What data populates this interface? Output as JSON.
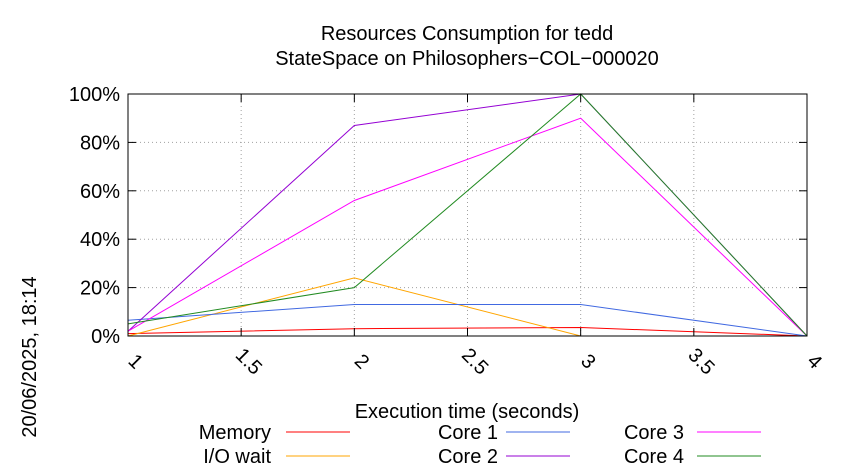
{
  "chart_data": {
    "type": "line",
    "title": "Resources Consumption for tedd",
    "subtitle": "StateSpace on Philosophers−COL−000020",
    "xlabel": "Execution time (seconds)",
    "ylabel": "",
    "side_label": "20/06/2025, 18:14",
    "xlim": [
      1,
      4
    ],
    "ylim": [
      0,
      100
    ],
    "x_ticks": [
      1,
      1.5,
      2,
      2.5,
      3,
      3.5,
      4
    ],
    "x_tick_labels": [
      "1",
      "1.5",
      "2",
      "2.5",
      "3",
      "3.5",
      "4"
    ],
    "y_ticks": [
      0,
      20,
      40,
      60,
      80,
      100
    ],
    "y_tick_labels": [
      "0%",
      "20%",
      "40%",
      "60%",
      "80%",
      "100%"
    ],
    "grid": true,
    "legend_position": "bottom",
    "x": [
      1,
      2,
      3,
      4
    ],
    "series": [
      {
        "name": "Memory",
        "color": "#ff0000",
        "values": [
          1,
          3,
          3.5,
          0
        ]
      },
      {
        "name": "I/O wait",
        "color": "#ffa500",
        "values": [
          0,
          24,
          0,
          0
        ]
      },
      {
        "name": "Core 1",
        "color": "#4169e1",
        "values": [
          6.5,
          13,
          13,
          0
        ]
      },
      {
        "name": "Core 2",
        "color": "#9400d3",
        "values": [
          2,
          87,
          100,
          0
        ]
      },
      {
        "name": "Core 3",
        "color": "#ff00ff",
        "values": [
          2,
          56,
          90,
          0
        ]
      },
      {
        "name": "Core 4",
        "color": "#228b22",
        "values": [
          5,
          20,
          100,
          0
        ]
      }
    ]
  }
}
